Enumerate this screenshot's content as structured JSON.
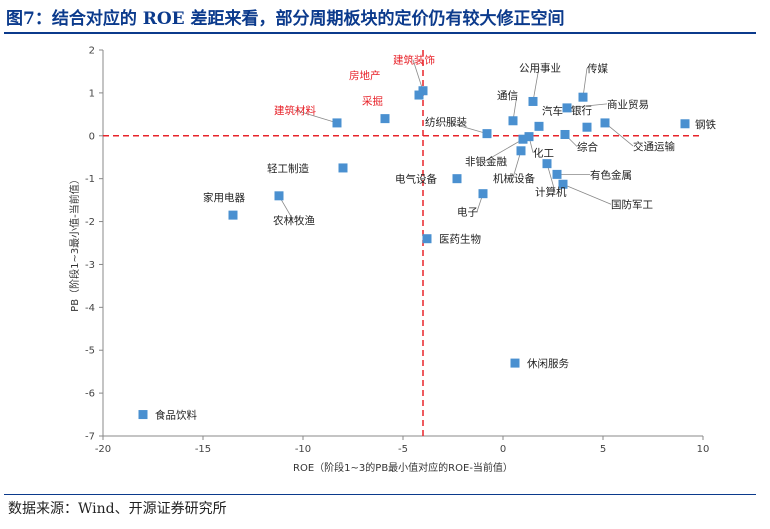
{
  "header": {
    "title": "图7：结合对应的 ROE 差距来看，部分周期板块的定价仍有较大修正空间"
  },
  "footer": {
    "source": "数据来源：Wind、开源证券研究所"
  },
  "colors": {
    "marker": "#4a90d0",
    "reference_line": "#e8232a",
    "highlight_label": "#e8232a",
    "title": "#0b3a8c"
  },
  "chart_data": {
    "type": "scatter",
    "xlabel": "ROE（阶段1~3的PB最小值对应的ROE-当前值）",
    "ylabel": "PB（阶段1~3最小值-当前值）",
    "xlim": [
      -20,
      10
    ],
    "ylim": [
      -7,
      2
    ],
    "xticks": [
      -20,
      -15,
      -10,
      -5,
      0,
      5,
      10
    ],
    "yticks": [
      2,
      1,
      0,
      -1,
      -2,
      -3,
      -4,
      -5,
      -6,
      -7
    ],
    "reference_lines": {
      "x": -4,
      "y": 0
    },
    "grid": false,
    "points": [
      {
        "label": "建筑装饰",
        "x": -4.0,
        "y": 1.05,
        "highlight": true
      },
      {
        "label": "房地产",
        "x": -4.2,
        "y": 0.95,
        "highlight": true
      },
      {
        "label": "采掘",
        "x": -5.9,
        "y": 0.4,
        "highlight": true
      },
      {
        "label": "建筑材料",
        "x": -8.3,
        "y": 0.3,
        "highlight": true
      },
      {
        "label": "轻工制造",
        "x": -8.0,
        "y": -0.75,
        "highlight": false
      },
      {
        "label": "家用电器",
        "x": -13.5,
        "y": -1.85,
        "highlight": false
      },
      {
        "label": "农林牧渔",
        "x": -11.2,
        "y": -1.4,
        "highlight": false
      },
      {
        "label": "医药生物",
        "x": -3.8,
        "y": -2.4,
        "highlight": false
      },
      {
        "label": "电气设备",
        "x": -2.3,
        "y": -1.0,
        "highlight": false
      },
      {
        "label": "电子",
        "x": -1.0,
        "y": -1.35,
        "highlight": false
      },
      {
        "label": "纺织服装",
        "x": -0.8,
        "y": 0.05,
        "highlight": false
      },
      {
        "label": "通信",
        "x": 0.5,
        "y": 0.35,
        "highlight": false
      },
      {
        "label": "公用事业",
        "x": 1.5,
        "y": 0.8,
        "highlight": false
      },
      {
        "label": "传媒",
        "x": 4.0,
        "y": 0.9,
        "highlight": false
      },
      {
        "label": "商业贸易",
        "x": 3.2,
        "y": 0.65,
        "highlight": false
      },
      {
        "label": "银行",
        "x": 4.2,
        "y": 0.2,
        "highlight": false
      },
      {
        "label": "钢铁",
        "x": 9.1,
        "y": 0.28,
        "highlight": false
      },
      {
        "label": "交通运输",
        "x": 5.1,
        "y": 0.3,
        "highlight": false
      },
      {
        "label": "汽车",
        "x": 1.8,
        "y": 0.22,
        "highlight": false
      },
      {
        "label": "综合",
        "x": 3.1,
        "y": 0.03,
        "highlight": false
      },
      {
        "label": "非银金融",
        "x": 1.0,
        "y": -0.08,
        "highlight": false
      },
      {
        "label": "化工",
        "x": 1.3,
        "y": -0.02,
        "highlight": false
      },
      {
        "label": "机械设备",
        "x": 0.9,
        "y": -0.35,
        "highlight": false
      },
      {
        "label": "有色金属",
        "x": 2.7,
        "y": -0.9,
        "highlight": false
      },
      {
        "label": "计算机",
        "x": 2.2,
        "y": -0.65,
        "highlight": false
      },
      {
        "label": "国防军工",
        "x": 3.0,
        "y": -1.13,
        "highlight": false
      },
      {
        "label": "休闲服务",
        "x": 0.6,
        "y": -5.3,
        "highlight": false
      },
      {
        "label": "食品饮料",
        "x": -18.0,
        "y": -6.5,
        "highlight": false
      }
    ]
  }
}
